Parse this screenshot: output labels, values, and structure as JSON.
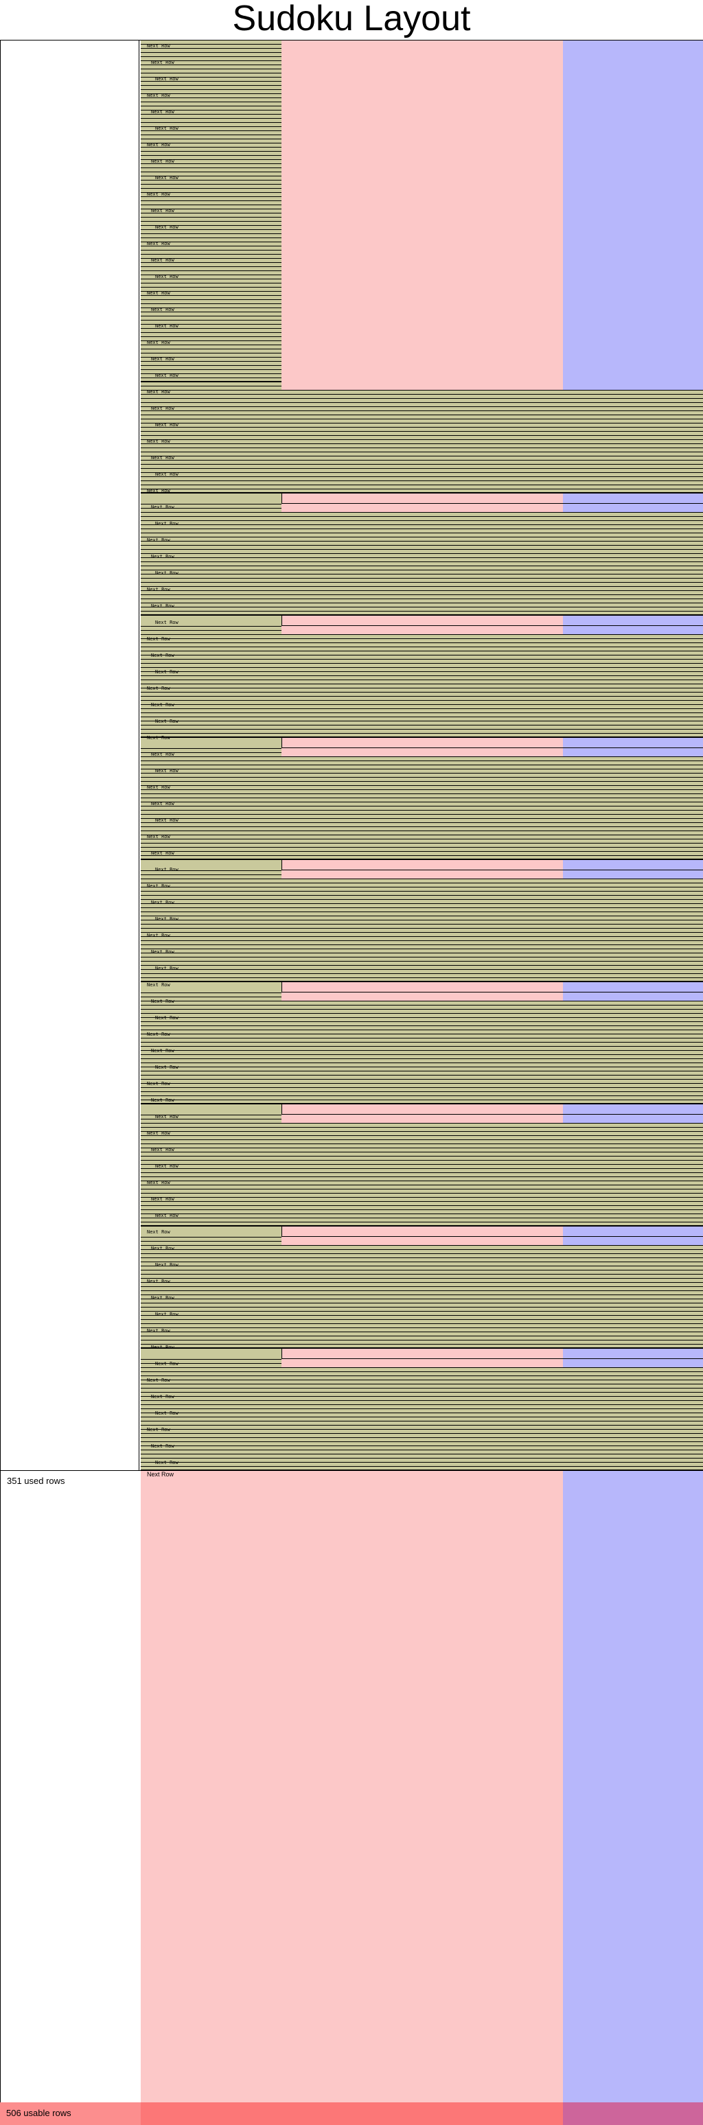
{
  "title": "Sudoku Layout",
  "labels": {
    "used_rows": "351 used rows",
    "usable_rows": "506 usable rows",
    "next_row": "Next Row"
  },
  "colors": {
    "used_fill": "#c9c99c",
    "pink_column": "#fcc8c8",
    "blue_column": "#b7b7fb",
    "bottom_band_left": "#fc8e8e",
    "bottom_band_mid": "#fc7777",
    "bottom_band_right": "#cd659b",
    "outline": "#000000"
  },
  "rows": {
    "used": 351,
    "usable": 506,
    "sections": 9
  }
}
